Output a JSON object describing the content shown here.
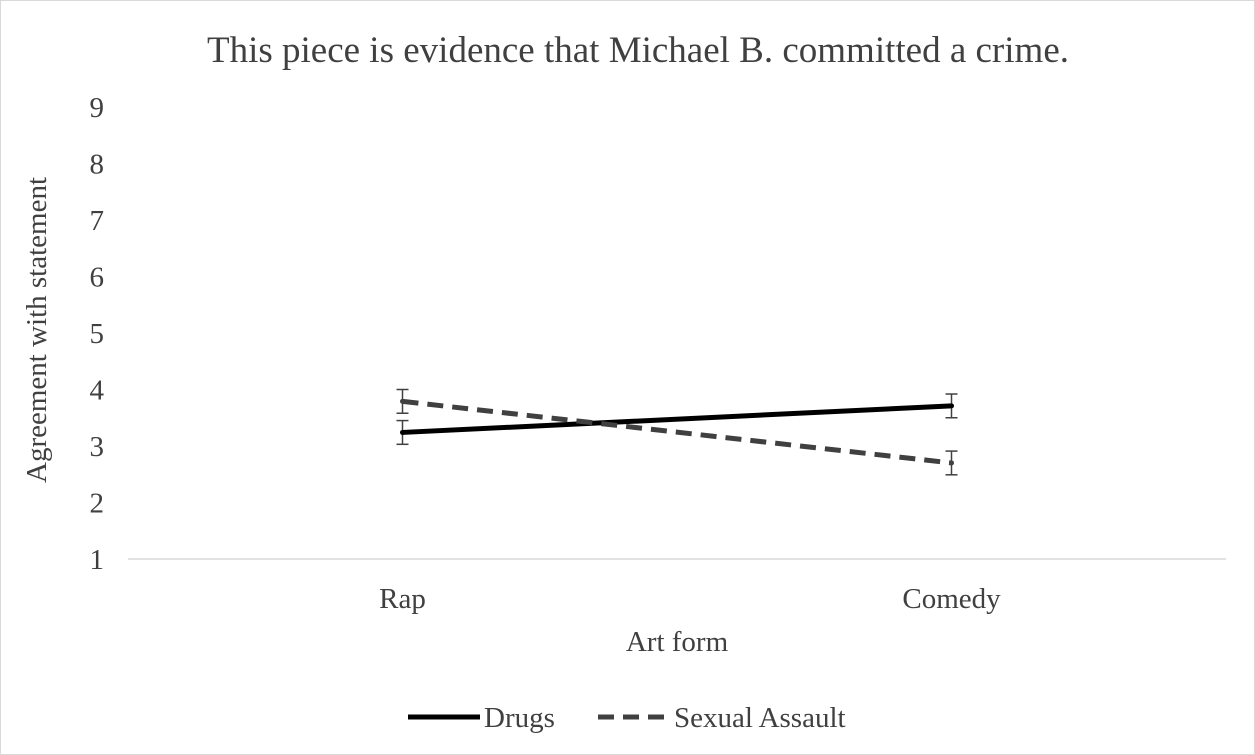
{
  "chart_data": {
    "type": "line",
    "title": "This piece is evidence that Michael B. committed a crime.",
    "xlabel": "Art form",
    "ylabel": "Agreement with statement",
    "categories": [
      "Rap",
      "Comedy"
    ],
    "ylim": [
      1,
      9
    ],
    "yticks": [
      "1",
      "2",
      "3",
      "4",
      "5",
      "6",
      "7",
      "8",
      "9"
    ],
    "grid": false,
    "legend_position": "bottom",
    "series": [
      {
        "name": "Drugs",
        "values": [
          3.24,
          3.71
        ],
        "error": [
          0.21,
          0.21
        ],
        "color": "#000000",
        "line_style": "solid"
      },
      {
        "name": "Sexual Assault",
        "values": [
          3.79,
          2.7
        ],
        "error": [
          0.21,
          0.21
        ],
        "color": "#404040",
        "line_style": "dashed"
      }
    ]
  }
}
